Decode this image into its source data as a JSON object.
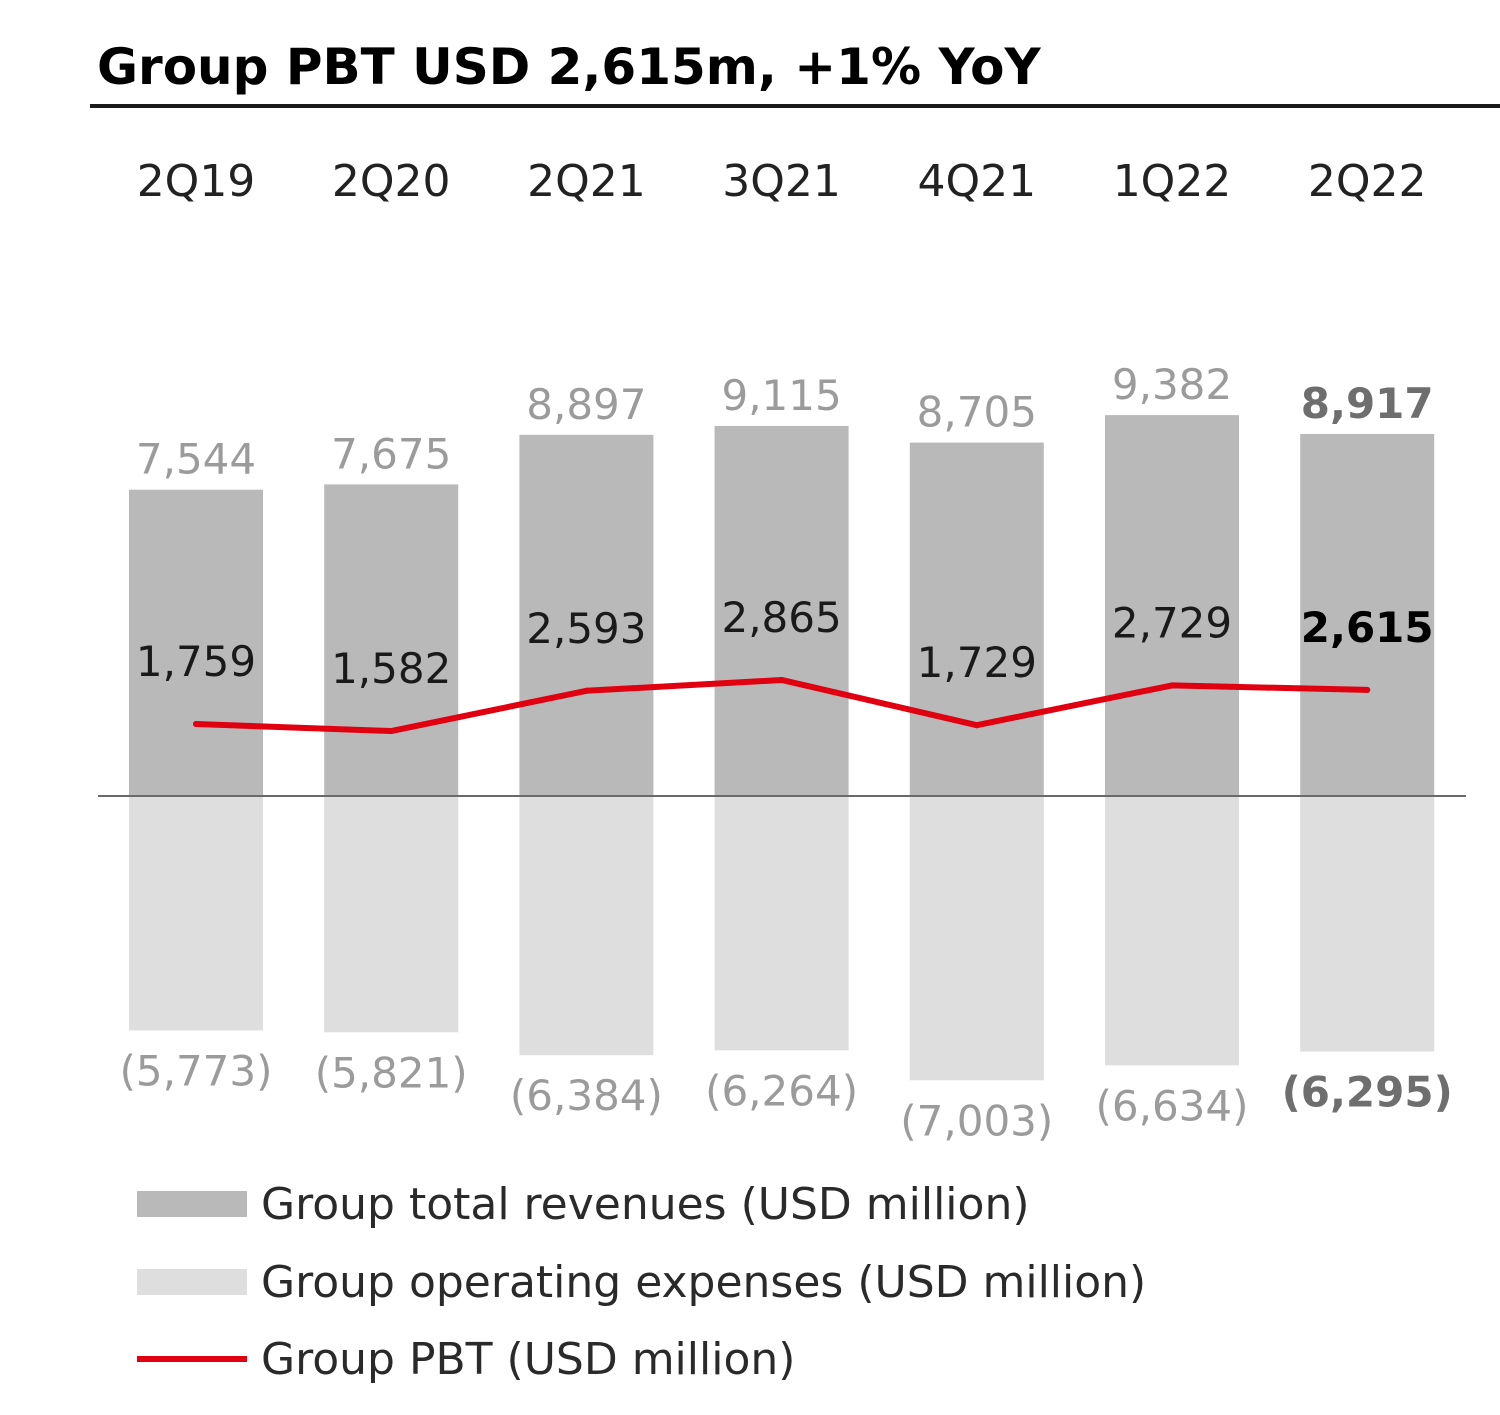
{
  "title": "Group PBT USD 2,615m, +1% YoY",
  "chart_data": {
    "type": "bar",
    "categories": [
      "2Q19",
      "2Q20",
      "2Q21",
      "3Q21",
      "4Q21",
      "1Q22",
      "2Q22"
    ],
    "series": [
      {
        "name": "Group total revenues (USD million)",
        "kind": "bar",
        "values": [
          7544,
          7675,
          8897,
          9115,
          8705,
          9382,
          8917
        ],
        "labels": [
          "7,544",
          "7,675",
          "8,897",
          "9,115",
          "8,705",
          "9,382",
          "8,917"
        ],
        "color": "#b9b9b9"
      },
      {
        "name": "Group operating expenses (USD million)",
        "kind": "bar",
        "values": [
          -5773,
          -5821,
          -6384,
          -6264,
          -7003,
          -6634,
          -6295
        ],
        "labels": [
          "(5,773)",
          "(5,821)",
          "(6,384)",
          "(6,264)",
          "(7,003)",
          "(6,634)",
          "(6,295)"
        ],
        "color": "#dedede"
      },
      {
        "name": "Group PBT (USD million)",
        "kind": "line",
        "values": [
          1759,
          1582,
          2593,
          2865,
          1729,
          2729,
          2615
        ],
        "labels": [
          "1,759",
          "1,582",
          "2,593",
          "2,865",
          "1,729",
          "2,729",
          "2,615"
        ],
        "color": "#e0000f"
      }
    ],
    "highlight_category": "2Q22",
    "ylim": [
      -7003,
      9382
    ],
    "grid": false,
    "legend_position": "bottom"
  }
}
